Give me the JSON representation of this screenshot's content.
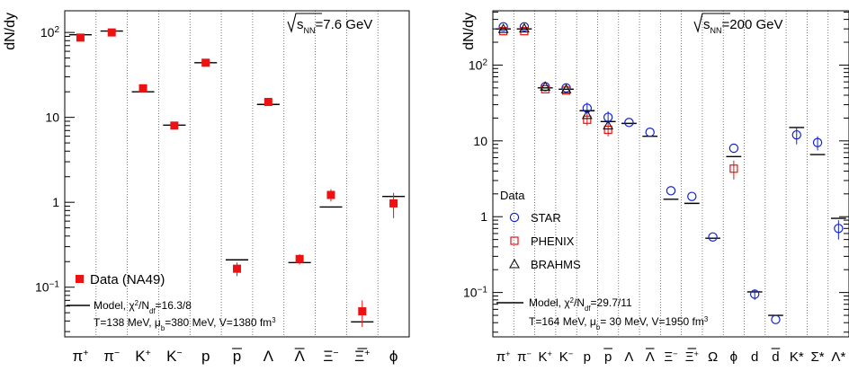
{
  "chart_data": [
    {
      "type": "scatter",
      "title": "",
      "energy_label": {
        "pre": "√",
        "sym": "s",
        "sub": "NN",
        "post": "=7.6 GeV"
      },
      "ylabel": "dN/dy",
      "xlabel": "",
      "yscale": "log",
      "ylim": [
        0.026,
        180
      ],
      "grid": {
        "x": true,
        "y": false
      },
      "yticks": [
        {
          "v": 0.1,
          "base": "10",
          "exp": "−1"
        },
        {
          "v": 1,
          "base": "1",
          "exp": ""
        },
        {
          "v": 10,
          "base": "10",
          "exp": ""
        },
        {
          "v": 100,
          "base": "10",
          "exp": "2"
        }
      ],
      "categories": [
        {
          "base": "π",
          "sup": "+",
          "bar": false
        },
        {
          "base": "π",
          "sup": "−",
          "bar": false
        },
        {
          "base": "K",
          "sup": "+",
          "bar": false
        },
        {
          "base": "K",
          "sup": "−",
          "bar": false
        },
        {
          "base": "p",
          "sup": "",
          "bar": false
        },
        {
          "base": "p",
          "sup": "",
          "bar": true
        },
        {
          "base": "Λ",
          "sup": "",
          "bar": false
        },
        {
          "base": "Λ",
          "sup": "",
          "bar": true
        },
        {
          "base": "Ξ",
          "sup": "−",
          "bar": false
        },
        {
          "base": "Ξ",
          "sup": "+",
          "bar": true
        },
        {
          "base": "ϕ",
          "sup": "",
          "bar": false
        }
      ],
      "series": [
        {
          "name": "Data (NA49)",
          "marker": "filled-square",
          "color": "#ee1111",
          "values": [
            87,
            100,
            22,
            8,
            44,
            0.165,
            15.2,
            0.215,
            1.22,
            0.052,
            0.97
          ],
          "errors": [
            null,
            null,
            null,
            null,
            null,
            0.03,
            null,
            0.03,
            0.2,
            0.018,
            0.32
          ]
        }
      ],
      "model": [
        94,
        104,
        20,
        8.1,
        44,
        0.21,
        14.2,
        0.195,
        0.88,
        0.039,
        1.17
      ],
      "legend": {
        "position": "bottom-left",
        "data_label": "Data (NA49)",
        "model_line1": {
          "pre": "Model, χ",
          "sup": "2",
          "mid": "/N",
          "sub": "df",
          "post": "=16.3/8"
        },
        "model_line2": {
          "pre": "T=138 MeV, μ",
          "sub": "b",
          "mid": "=380 MeV, V=1380 fm",
          "sup": "3",
          "post": ""
        }
      }
    },
    {
      "type": "scatter",
      "title": "",
      "energy_label": {
        "pre": "√",
        "sym": "s",
        "sub": "NN",
        "post": "=200 GeV"
      },
      "ylabel": "dN/dy",
      "xlabel": "",
      "yscale": "log",
      "ylim": [
        0.026,
        520
      ],
      "grid": {
        "x": true,
        "y": false
      },
      "yticks": [
        {
          "v": 0.1,
          "base": "10",
          "exp": "−1"
        },
        {
          "v": 1,
          "base": "1",
          "exp": ""
        },
        {
          "v": 10,
          "base": "10",
          "exp": ""
        },
        {
          "v": 100,
          "base": "10",
          "exp": "2"
        }
      ],
      "categories": [
        {
          "base": "π",
          "sup": "+",
          "bar": false
        },
        {
          "base": "π",
          "sup": "−",
          "bar": false
        },
        {
          "base": "K",
          "sup": "+",
          "bar": false
        },
        {
          "base": "K",
          "sup": "−",
          "bar": false
        },
        {
          "base": "p",
          "sup": "",
          "bar": false
        },
        {
          "base": "p",
          "sup": "",
          "bar": true
        },
        {
          "base": "Λ",
          "sup": "",
          "bar": false
        },
        {
          "base": "Λ",
          "sup": "",
          "bar": true
        },
        {
          "base": "Ξ",
          "sup": "−",
          "bar": false
        },
        {
          "base": "Ξ",
          "sup": "+",
          "bar": true
        },
        {
          "base": "Ω",
          "sup": "",
          "bar": false
        },
        {
          "base": "ϕ",
          "sup": "",
          "bar": false
        },
        {
          "base": "d",
          "sup": "",
          "bar": false
        },
        {
          "base": "d",
          "sup": "",
          "bar": true
        },
        {
          "base": "K*",
          "sup": "",
          "bar": false
        },
        {
          "base": "Σ*",
          "sup": "",
          "bar": false
        },
        {
          "base": "Λ*",
          "sup": "",
          "bar": false
        }
      ],
      "series": [
        {
          "name": "STAR",
          "marker": "open-circle",
          "color": "#1122cc",
          "values": [
            320,
            320,
            52,
            50,
            27,
            20.5,
            17.5,
            13,
            2.2,
            1.85,
            0.54,
            8,
            0.095,
            0.044,
            12,
            9.5,
            0.7
          ],
          "errors": [
            null,
            null,
            null,
            null,
            5,
            4,
            null,
            null,
            null,
            null,
            null,
            null,
            0.015,
            null,
            3,
            2,
            0.2
          ]
        },
        {
          "name": "PHENIX",
          "marker": "open-square",
          "color": "#ee1111",
          "values": [
            280,
            280,
            48,
            46,
            19,
            14,
            null,
            null,
            null,
            null,
            null,
            4.3,
            null,
            null,
            null,
            null,
            null
          ],
          "errors": [
            null,
            null,
            null,
            null,
            3,
            2.5,
            null,
            null,
            null,
            null,
            null,
            1.2,
            null,
            null,
            null,
            null,
            null
          ]
        },
        {
          "name": "BRAHMS",
          "marker": "open-triangle",
          "color": "#111111",
          "values": [
            300,
            305,
            52,
            48,
            22,
            16,
            null,
            null,
            null,
            null,
            null,
            null,
            null,
            null,
            null,
            null,
            null
          ],
          "errors": [
            null,
            null,
            null,
            null,
            null,
            null,
            null,
            null,
            null,
            null,
            null,
            null,
            null,
            null,
            null,
            null,
            null
          ]
        }
      ],
      "model": [
        300,
        300,
        50,
        48,
        25,
        18,
        17,
        11.5,
        1.7,
        1.5,
        0.52,
        6.2,
        0.102,
        0.05,
        15,
        6.6,
        0.95
      ],
      "legend": {
        "position": "bottom-left",
        "header": "Data",
        "model_line1": {
          "pre": "Model, χ",
          "sup": "2",
          "mid": "/N",
          "sub": "df",
          "post": "=29.7/11"
        },
        "model_line2": {
          "pre": "T=164 MeV, μ",
          "sub": "b",
          "mid": "= 30 MeV, V=1950 fm",
          "sup": "3",
          "post": ""
        }
      }
    }
  ]
}
